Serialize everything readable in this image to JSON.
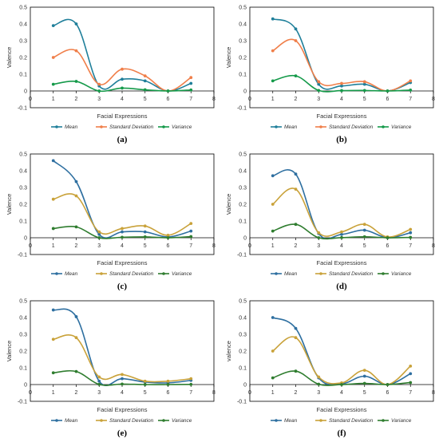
{
  "chart_data": [
    {
      "type": "line",
      "label": "(a)",
      "xlabel": "Facial Expressions",
      "ylabel": "Valence",
      "xlim": [
        0,
        8
      ],
      "ylim": [
        -0.1,
        0.5
      ],
      "x": [
        1,
        2,
        3,
        4,
        5,
        6,
        7
      ],
      "xticks": [
        "0",
        "1",
        "2",
        "3",
        "4",
        "5",
        "6",
        "7",
        "8"
      ],
      "yticks": [
        "-0.1",
        "0",
        "0.1",
        "0.2",
        "0.3",
        "0.4",
        "0.5"
      ],
      "legend_position": "bottom",
      "series": [
        {
          "name": "Mean",
          "color": "#1f7f9a",
          "values": [
            0.39,
            0.4,
            0.03,
            0.07,
            0.06,
            0.0,
            0.045
          ]
        },
        {
          "name": "Standard Deviation",
          "color": "#f07f4a",
          "values": [
            0.2,
            0.24,
            0.04,
            0.13,
            0.09,
            0.0,
            0.08
          ]
        },
        {
          "name": "Variance",
          "color": "#159a4a",
          "values": [
            0.04,
            0.057,
            0.0,
            0.017,
            0.007,
            0.0,
            0.006
          ]
        }
      ]
    },
    {
      "type": "line",
      "label": "(b)",
      "xlabel": "Facial Expressions",
      "ylabel": "Valence",
      "xlim": [
        0,
        8
      ],
      "ylim": [
        -0.1,
        0.5
      ],
      "x": [
        1,
        2,
        3,
        4,
        5,
        6,
        7
      ],
      "xticks": [
        "0",
        "1",
        "2",
        "3",
        "4",
        "5",
        "6",
        "7",
        "8"
      ],
      "yticks": [
        "-0.1",
        "0",
        "0.1",
        "0.2",
        "0.3",
        "0.4",
        "0.5"
      ],
      "legend_position": "bottom",
      "series": [
        {
          "name": "Mean",
          "color": "#1f7f9a",
          "values": [
            0.43,
            0.37,
            0.04,
            0.03,
            0.04,
            0.0,
            0.05
          ]
        },
        {
          "name": "Standard Deviation",
          "color": "#f07f4a",
          "values": [
            0.24,
            0.3,
            0.055,
            0.045,
            0.055,
            0.0,
            0.06
          ]
        },
        {
          "name": "Variance",
          "color": "#159a4a",
          "values": [
            0.06,
            0.09,
            0.003,
            0.002,
            0.003,
            0.0,
            0.005
          ]
        }
      ]
    },
    {
      "type": "line",
      "label": "(c)",
      "xlabel": "Facial Expressions",
      "ylabel": "Valence",
      "xlim": [
        0,
        8
      ],
      "ylim": [
        -0.1,
        0.5
      ],
      "x": [
        1,
        2,
        3,
        4,
        5,
        6,
        7
      ],
      "xticks": [
        "0",
        "1",
        "2",
        "3",
        "4",
        "5",
        "6",
        "7",
        "8"
      ],
      "yticks": [
        "-0.1",
        "0",
        "0.1",
        "0.2",
        "0.3",
        "0.4",
        "0.5"
      ],
      "legend_position": "bottom",
      "series": [
        {
          "name": "Mean",
          "color": "#2e6fa0",
          "values": [
            0.46,
            0.335,
            0.02,
            0.035,
            0.035,
            0.005,
            0.04
          ]
        },
        {
          "name": "Standard Deviation",
          "color": "#c9a23a",
          "values": [
            0.23,
            0.25,
            0.035,
            0.055,
            0.07,
            0.015,
            0.085
          ]
        },
        {
          "name": "Variance",
          "color": "#2f7d2f",
          "values": [
            0.055,
            0.065,
            0.0,
            0.003,
            0.005,
            0.0,
            0.007
          ]
        }
      ]
    },
    {
      "type": "line",
      "label": "(d)",
      "xlabel": "Facial Expressions",
      "ylabel": "Valence",
      "xlim": [
        0,
        8
      ],
      "ylim": [
        -0.1,
        0.5
      ],
      "x": [
        1,
        2,
        3,
        4,
        5,
        6,
        7
      ],
      "xticks": [
        "0",
        "1",
        "2",
        "3",
        "4",
        "5",
        "6",
        "7",
        "8"
      ],
      "yticks": [
        "-0.1",
        "0",
        "0.1",
        "0.2",
        "0.3",
        "0.4",
        "0.5"
      ],
      "legend_position": "bottom",
      "series": [
        {
          "name": "Mean",
          "color": "#2e6fa0",
          "values": [
            0.37,
            0.38,
            0.025,
            0.02,
            0.045,
            0.0,
            0.03
          ]
        },
        {
          "name": "Standard Deviation",
          "color": "#c9a23a",
          "values": [
            0.2,
            0.29,
            0.03,
            0.035,
            0.08,
            0.005,
            0.05
          ]
        },
        {
          "name": "Variance",
          "color": "#2f7d2f",
          "values": [
            0.04,
            0.08,
            0.0,
            0.001,
            0.006,
            0.0,
            0.002
          ]
        }
      ]
    },
    {
      "type": "line",
      "label": "(e)",
      "xlabel": "Facial Expressions",
      "ylabel": "Valence",
      "xlim": [
        0,
        8
      ],
      "ylim": [
        -0.1,
        0.5
      ],
      "x": [
        1,
        2,
        3,
        4,
        5,
        6,
        7
      ],
      "xticks": [
        "0",
        "1",
        "2",
        "3",
        "4",
        "5",
        "6",
        "7",
        "8"
      ],
      "yticks": [
        "-0.1",
        "0",
        "0.1",
        "0.2",
        "0.3",
        "0.4",
        "0.5"
      ],
      "legend_position": "bottom",
      "series": [
        {
          "name": "Mean",
          "color": "#2e6fa0",
          "values": [
            0.445,
            0.405,
            0.02,
            0.035,
            0.015,
            0.01,
            0.025
          ]
        },
        {
          "name": "Standard Deviation",
          "color": "#c9a23a",
          "values": [
            0.27,
            0.28,
            0.045,
            0.06,
            0.02,
            0.02,
            0.035
          ]
        },
        {
          "name": "Variance",
          "color": "#2f7d2f",
          "values": [
            0.07,
            0.078,
            0.001,
            0.003,
            0.0,
            0.0,
            0.001
          ]
        }
      ]
    },
    {
      "type": "line",
      "label": "(f)",
      "xlabel": "Facial Expressions",
      "ylabel": "valence",
      "xlim": [
        0,
        8
      ],
      "ylim": [
        -0.1,
        0.5
      ],
      "x": [
        1,
        2,
        3,
        4,
        5,
        6,
        7
      ],
      "xticks": [
        "0",
        "1",
        "2",
        "3",
        "4",
        "5",
        "6",
        "7",
        "8"
      ],
      "yticks": [
        "-0.1",
        "0",
        "0.1",
        "0.2",
        "0.3",
        "0.4",
        "0.5"
      ],
      "legend_position": "bottom",
      "series": [
        {
          "name": "Mean",
          "color": "#2e6fa0",
          "values": [
            0.4,
            0.335,
            0.04,
            0.005,
            0.05,
            0.0,
            0.065
          ]
        },
        {
          "name": "Standard Deviation",
          "color": "#c9a23a",
          "values": [
            0.2,
            0.28,
            0.045,
            0.01,
            0.085,
            0.0,
            0.11
          ]
        },
        {
          "name": "Variance",
          "color": "#2f7d2f",
          "values": [
            0.04,
            0.08,
            0.002,
            0.0,
            0.007,
            0.0,
            0.012
          ]
        }
      ]
    }
  ]
}
